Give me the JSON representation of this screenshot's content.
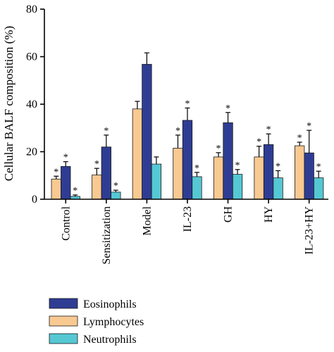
{
  "chart_data": {
    "type": "bar",
    "ylabel": "Cellular BALF composition (%)",
    "ylim": [
      0,
      80
    ],
    "yticks": [
      0,
      20,
      40,
      60,
      80
    ],
    "categories": [
      "Control",
      "Sensitization",
      "Model",
      "IL-23",
      "GH",
      "HY",
      "IL-23+HY"
    ],
    "series": [
      {
        "name": "Lymphocytes",
        "color": "#f9c992",
        "values": [
          8.5,
          10.2,
          38.0,
          21.5,
          17.8,
          17.8,
          22.5
        ],
        "errors": [
          1.2,
          2.8,
          3.2,
          5.5,
          1.8,
          4.5,
          1.5
        ],
        "significant": [
          true,
          true,
          false,
          true,
          true,
          true,
          true
        ]
      },
      {
        "name": "Eosinophils",
        "color": "#2e3d93",
        "values": [
          13.8,
          22.0,
          56.8,
          33.2,
          32.2,
          23.0,
          19.5
        ],
        "errors": [
          2.0,
          5.0,
          4.8,
          5.2,
          4.3,
          4.5,
          9.5
        ],
        "significant": [
          true,
          true,
          false,
          true,
          true,
          true,
          true
        ]
      },
      {
        "name": "Neutrophils",
        "color": "#55c8d4",
        "values": [
          1.2,
          3.0,
          14.8,
          9.5,
          10.5,
          9.0,
          9.0
        ],
        "errors": [
          0.6,
          0.8,
          3.0,
          1.8,
          2.0,
          3.0,
          2.8
        ],
        "significant": [
          true,
          true,
          false,
          true,
          true,
          true,
          true
        ]
      }
    ],
    "legend": {
      "placement": "bottom-left",
      "order": [
        "Eosinophils",
        "Lymphocytes",
        "Neutrophils"
      ]
    },
    "significance_marker": "*",
    "grid": false
  }
}
